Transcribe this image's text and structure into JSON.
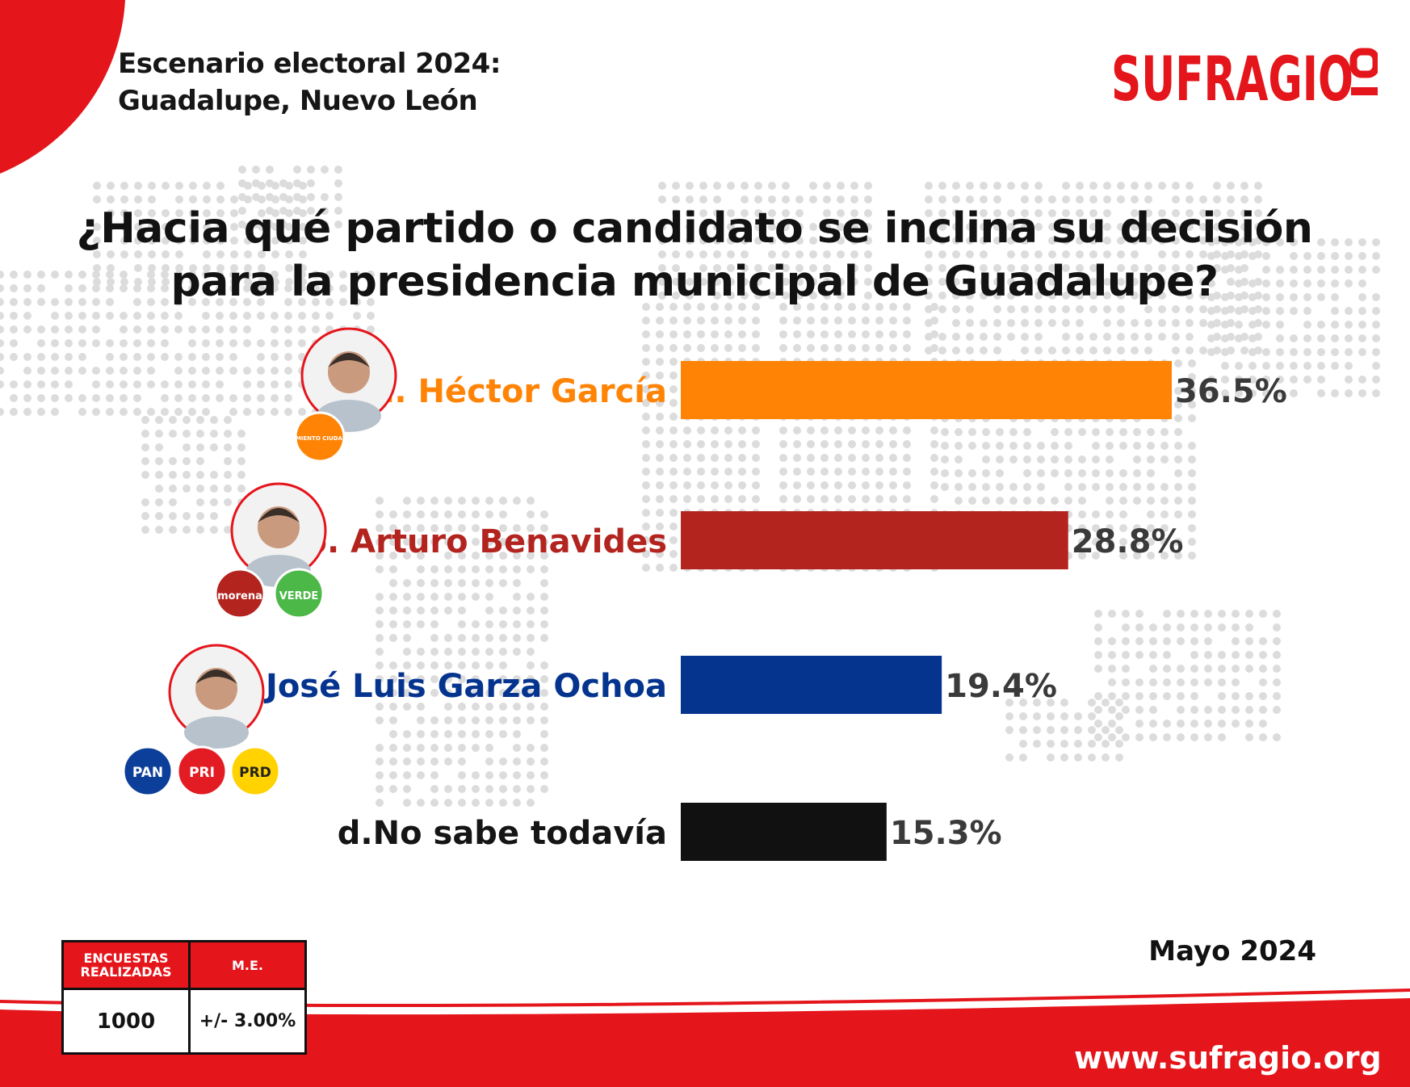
{
  "header": {
    "subtitle_line1": "Escenario electoral 2024:",
    "subtitle_line2": "Guadalupe, Nuevo León",
    "brand": "SUFRAGIO"
  },
  "question": {
    "line1": "¿Hacia qué partido o candidato se inclina su decisión",
    "line2": "para la presidencia municipal de Guadalupe?"
  },
  "chart_data": {
    "type": "bar",
    "orientation": "horizontal",
    "title": "¿Hacia qué partido o candidato se inclina su decisión para la presidencia municipal de Guadalupe?",
    "categories": [
      "a. Héctor García",
      "b. Arturo Benavides",
      "c.José Luis Garza Ochoa",
      "d.No sabe todavía"
    ],
    "values": [
      36.5,
      28.8,
      19.4,
      15.3
    ],
    "value_labels": [
      "36.5%",
      "28.8%",
      "19.4%",
      "15.3%"
    ],
    "colors": [
      "#ff8405",
      "#b3241f",
      "#05348f",
      "#111111"
    ],
    "label_colors": [
      "#ff8405",
      "#b3241f",
      "#05348f",
      "#151515"
    ],
    "unit": "%",
    "grid": false,
    "legend": "none",
    "party_logos": [
      [
        {
          "name": "movimiento-ciudadano",
          "text": "MOVIMIENTO CIUDADANO",
          "color": "#ff8405"
        }
      ],
      [
        {
          "name": "morena",
          "text": "morena",
          "color": "#b3241f"
        },
        {
          "name": "verde",
          "text": "VERDE",
          "color": "#4cb848"
        }
      ],
      [
        {
          "name": "pan",
          "text": "PAN",
          "color": "#0c3f99"
        },
        {
          "name": "pri",
          "text": "PRI",
          "color": "#e31c23"
        },
        {
          "name": "prd",
          "text": "PRD",
          "color": "#ffd200"
        }
      ]
    ]
  },
  "footer": {
    "date": "Mayo 2024",
    "table_header_surveys": "ENCUESTAS REALIZADAS",
    "table_header_me": "M.E.",
    "surveys": "1000",
    "margin_error": "+/- 3.00%",
    "website": "www.sufragio.org"
  },
  "colors": {
    "brand_red": "#e4151b",
    "map_dots": "#dcdcdc"
  }
}
